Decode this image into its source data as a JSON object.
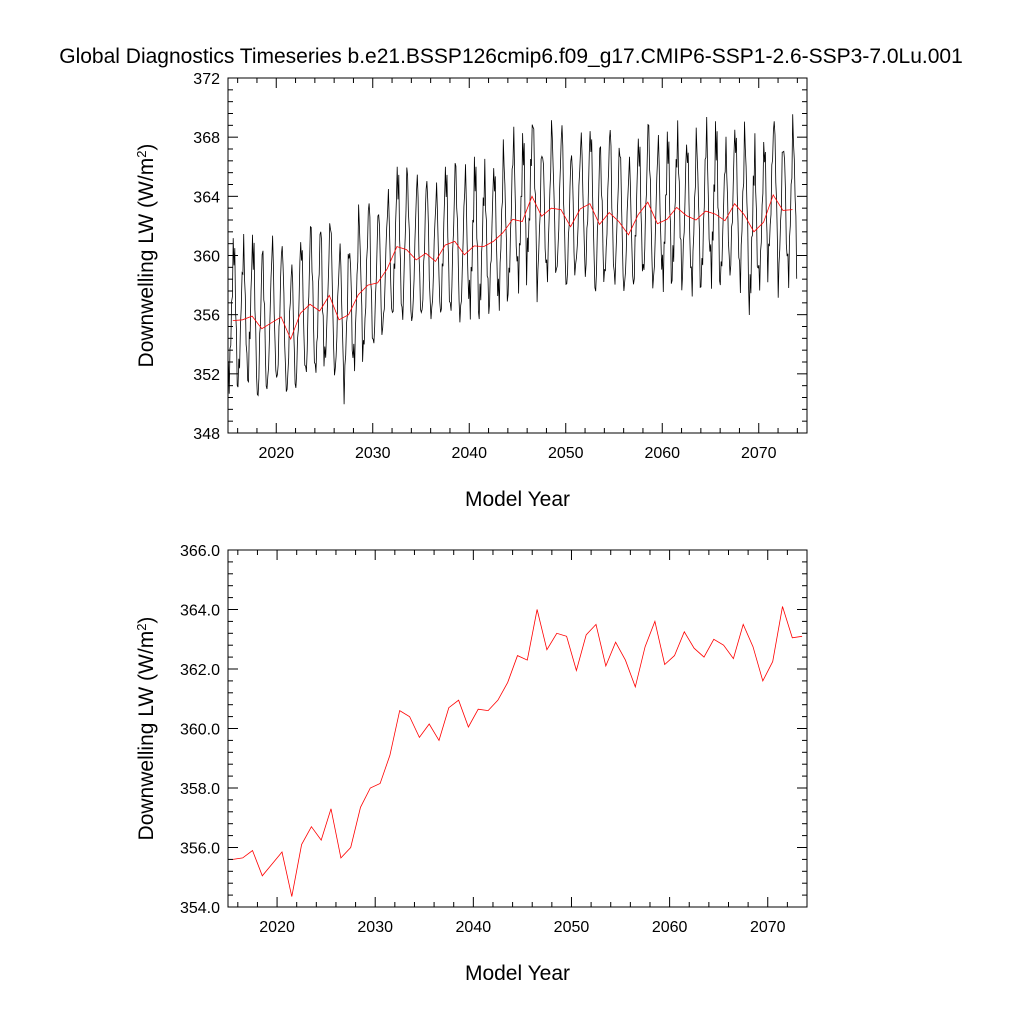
{
  "title": "Global Diagnostics Timeseries b.e21.BSSP126cmip6.f09_g17.CMIP6-SSP1-2.6-SSP3-7.0Lu.001",
  "chart_data": [
    {
      "type": "line",
      "xlabel": "Model Year",
      "ylabel_main": "Downwelling LW (W/m",
      "ylabel_sup": "2",
      "ylabel_close": ")",
      "xlim": [
        2015,
        2075
      ],
      "ylim": [
        348,
        372
      ],
      "x_ticks": [
        2020,
        2030,
        2040,
        2050,
        2060,
        2070
      ],
      "x_tick_labels": [
        "2020",
        "2030",
        "2040",
        "2050",
        "2060",
        "2070"
      ],
      "y_ticks": [
        348,
        352,
        356,
        360,
        364,
        368,
        372
      ],
      "y_tick_labels": [
        "348",
        "352",
        "356",
        "360",
        "364",
        "368",
        "372"
      ],
      "series": [
        {
          "color": "#000000",
          "x_start": 2015.04,
          "x_step": 0.0833,
          "annual_base": [
            355.4,
            355.7,
            355.9,
            355.0,
            355.4,
            355.8,
            354.3,
            356.1,
            356.7,
            356.2,
            357.3,
            355.6,
            356.0,
            357.3,
            358.0,
            358.1,
            359.1,
            360.6,
            360.4,
            359.7,
            360.2,
            359.6,
            360.7,
            360.9,
            360.1,
            360.6,
            360.6,
            360.9,
            361.5,
            362.4,
            362.3,
            364.0,
            362.6,
            363.2,
            363.1,
            362.0,
            363.1,
            363.5,
            362.1,
            362.9,
            362.3,
            361.4,
            362.7,
            363.6,
            362.2,
            362.4,
            363.2,
            362.7,
            362.4,
            363.0,
            362.8,
            362.4,
            363.5,
            362.7,
            361.6,
            362.2,
            364.1,
            363.0,
            363.1
          ],
          "seasonal_offset": [
            -4.2,
            -3.9,
            -2.6,
            -0.9,
            0.9,
            2.9,
            4.6,
            4.9,
            3.6,
            1.1,
            -1.3,
            -3.4
          ],
          "year_wobble": [
            0.6,
            -0.4,
            0.9,
            -0.7,
            0.3,
            -0.9,
            0.7,
            0.2,
            -0.5,
            1.2,
            -0.3,
            0.5,
            -0.8,
            0.4,
            1.0,
            -0.6,
            0.2,
            0.8,
            -0.2,
            0.6,
            -0.9,
            0.3,
            0.7,
            -0.4,
            0.1,
            0.9,
            -0.7,
            0.4,
            0.6,
            -0.3,
            0.8,
            1.4,
            -0.5,
            0.2,
            0.7,
            -0.8,
            0.5,
            0.3,
            -0.6,
            0.9,
            -0.2,
            0.4,
            0.6,
            -0.5,
            0.3,
            0.8,
            -0.7,
            0.2,
            0.5,
            -0.4,
            1.1,
            -0.2,
            0.4,
            0.6,
            -0.9,
            0.3,
            0.9,
            -0.6,
            0.7
          ]
        },
        {
          "color": "#ff0000",
          "x": [
            2015.5,
            2016.5,
            2017.5,
            2018.5,
            2019.5,
            2020.5,
            2021.5,
            2022.5,
            2023.5,
            2024.5,
            2025.5,
            2026.5,
            2027.5,
            2028.5,
            2029.5,
            2030.5,
            2031.5,
            2032.5,
            2033.5,
            2034.5,
            2035.5,
            2036.5,
            2037.5,
            2038.5,
            2039.5,
            2040.5,
            2041.5,
            2042.5,
            2043.5,
            2044.5,
            2045.5,
            2046.5,
            2047.5,
            2048.5,
            2049.5,
            2050.5,
            2051.5,
            2052.5,
            2053.5,
            2054.5,
            2055.5,
            2056.5,
            2057.5,
            2058.5,
            2059.5,
            2060.5,
            2061.5,
            2062.5,
            2063.5,
            2064.5,
            2065.5,
            2066.5,
            2067.5,
            2068.5,
            2069.5,
            2070.5,
            2071.5,
            2072.5,
            2073.5
          ],
          "values": [
            355.6,
            355.65,
            355.9,
            355.05,
            355.45,
            355.85,
            354.35,
            356.1,
            356.7,
            356.25,
            357.3,
            355.65,
            356.0,
            357.35,
            358.0,
            358.15,
            359.1,
            360.6,
            360.4,
            359.7,
            360.15,
            359.6,
            360.7,
            360.95,
            360.05,
            360.65,
            360.6,
            360.95,
            361.55,
            362.45,
            362.3,
            364.0,
            362.65,
            363.2,
            363.1,
            361.95,
            363.15,
            363.5,
            362.1,
            362.9,
            362.3,
            361.4,
            362.75,
            363.6,
            362.15,
            362.45,
            363.25,
            362.7,
            362.4,
            363.0,
            362.8,
            362.35,
            363.5,
            362.75,
            361.6,
            362.25,
            364.1,
            363.05,
            363.1
          ]
        }
      ]
    },
    {
      "type": "line",
      "xlabel": "Model Year",
      "ylabel_main": "Downwelling LW (W/m",
      "ylabel_sup": "2",
      "ylabel_close": ")",
      "xlim": [
        2015,
        2074
      ],
      "ylim": [
        354,
        366
      ],
      "x_ticks": [
        2020,
        2030,
        2040,
        2050,
        2060,
        2070
      ],
      "x_tick_labels": [
        "2020",
        "2030",
        "2040",
        "2050",
        "2060",
        "2070"
      ],
      "y_ticks": [
        354,
        356,
        358,
        360,
        362,
        364,
        366
      ],
      "y_tick_labels": [
        "354.0",
        "356.0",
        "358.0",
        "360.0",
        "362.0",
        "364.0",
        "366.0"
      ],
      "series": [
        {
          "color": "#ff0000",
          "x": [
            2015.5,
            2016.5,
            2017.5,
            2018.5,
            2019.5,
            2020.5,
            2021.5,
            2022.5,
            2023.5,
            2024.5,
            2025.5,
            2026.5,
            2027.5,
            2028.5,
            2029.5,
            2030.5,
            2031.5,
            2032.5,
            2033.5,
            2034.5,
            2035.5,
            2036.5,
            2037.5,
            2038.5,
            2039.5,
            2040.5,
            2041.5,
            2042.5,
            2043.5,
            2044.5,
            2045.5,
            2046.5,
            2047.5,
            2048.5,
            2049.5,
            2050.5,
            2051.5,
            2052.5,
            2053.5,
            2054.5,
            2055.5,
            2056.5,
            2057.5,
            2058.5,
            2059.5,
            2060.5,
            2061.5,
            2062.5,
            2063.5,
            2064.5,
            2065.5,
            2066.5,
            2067.5,
            2068.5,
            2069.5,
            2070.5,
            2071.5,
            2072.5,
            2073.5
          ],
          "values": [
            355.6,
            355.65,
            355.9,
            355.05,
            355.45,
            355.85,
            354.35,
            356.1,
            356.7,
            356.25,
            357.3,
            355.65,
            356.0,
            357.35,
            358.0,
            358.15,
            359.1,
            360.6,
            360.4,
            359.7,
            360.15,
            359.6,
            360.7,
            360.95,
            360.05,
            360.65,
            360.6,
            360.95,
            361.55,
            362.45,
            362.3,
            364.0,
            362.65,
            363.2,
            363.1,
            361.95,
            363.15,
            363.5,
            362.1,
            362.9,
            362.3,
            361.4,
            362.75,
            363.6,
            362.15,
            362.45,
            363.25,
            362.7,
            362.4,
            363.0,
            362.8,
            362.35,
            363.5,
            362.75,
            361.6,
            362.25,
            364.1,
            363.05,
            363.1
          ]
        }
      ]
    }
  ]
}
